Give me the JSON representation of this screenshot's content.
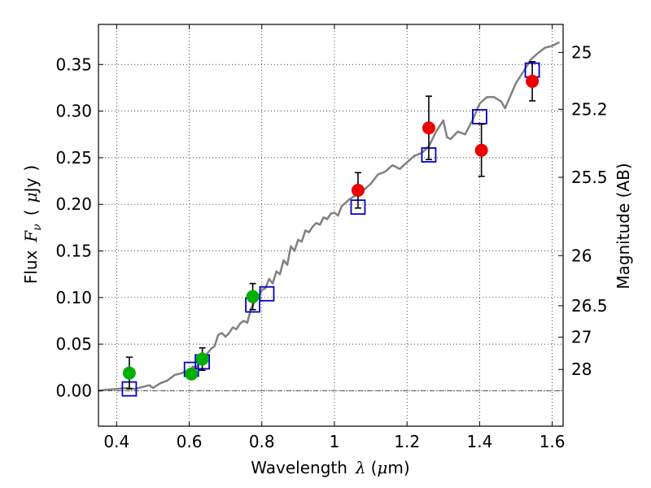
{
  "chart_data": {
    "type": "scatter",
    "xlabel": "Wavelength",
    "xlabel_symbol": "λ",
    "xlabel_unit_open": "(",
    "xlabel_unit_mu": "μ",
    "xlabel_unit_rest": "m)",
    "ylabel_prefix": "Flux",
    "ylabel_symbol": "F",
    "ylabel_subscript": "ν",
    "ylabel_unit_open": "(",
    "ylabel_unit_mu": "μ",
    "ylabel_unit_rest": "Jy",
    "ylabel_unit_close": ")",
    "y2label": "Magnitude (AB)",
    "xlim": [
      0.35,
      1.63
    ],
    "ylim": [
      -0.038,
      0.393
    ],
    "grid": true,
    "xticks": [
      {
        "value": 0.4,
        "label": "0.4"
      },
      {
        "value": 0.6,
        "label": "0.6"
      },
      {
        "value": 0.8,
        "label": "0.8"
      },
      {
        "value": 1.0,
        "label": "1"
      },
      {
        "value": 1.2,
        "label": "1.2"
      },
      {
        "value": 1.4,
        "label": "1.4"
      },
      {
        "value": 1.6,
        "label": "1.6"
      }
    ],
    "yticks": [
      {
        "value": 0.0,
        "label": "0.00"
      },
      {
        "value": 0.05,
        "label": "0.05"
      },
      {
        "value": 0.1,
        "label": "0.10"
      },
      {
        "value": 0.15,
        "label": "0.15"
      },
      {
        "value": 0.2,
        "label": "0.20"
      },
      {
        "value": 0.25,
        "label": "0.25"
      },
      {
        "value": 0.3,
        "label": "0.30"
      },
      {
        "value": 0.35,
        "label": "0.35"
      }
    ],
    "y2ticks": [
      {
        "flux": 0.363,
        "label": "25"
      },
      {
        "flux": 0.302,
        "label": "25.2"
      },
      {
        "flux": 0.229,
        "label": "25.5"
      },
      {
        "flux": 0.145,
        "label": "26"
      },
      {
        "flux": 0.0912,
        "label": "26.5"
      },
      {
        "flux": 0.0575,
        "label": "27"
      },
      {
        "flux": 0.0229,
        "label": "28"
      }
    ],
    "model_sed": {
      "color": "#808080",
      "x": [
        0.35,
        0.37,
        0.4,
        0.43,
        0.45,
        0.47,
        0.49,
        0.5,
        0.52,
        0.54,
        0.56,
        0.58,
        0.59,
        0.6,
        0.61,
        0.62,
        0.63,
        0.64,
        0.65,
        0.66,
        0.67,
        0.68,
        0.69,
        0.7,
        0.71,
        0.72,
        0.73,
        0.74,
        0.75,
        0.76,
        0.77,
        0.78,
        0.79,
        0.8,
        0.81,
        0.82,
        0.83,
        0.84,
        0.85,
        0.86,
        0.87,
        0.88,
        0.89,
        0.9,
        0.91,
        0.92,
        0.93,
        0.94,
        0.95,
        0.96,
        0.97,
        0.98,
        0.99,
        1.0,
        1.01,
        1.02,
        1.04,
        1.06,
        1.08,
        1.1,
        1.12,
        1.14,
        1.16,
        1.18,
        1.2,
        1.22,
        1.24,
        1.26,
        1.28,
        1.3,
        1.31,
        1.32,
        1.34,
        1.36,
        1.38,
        1.4,
        1.42,
        1.44,
        1.46,
        1.47,
        1.48,
        1.5,
        1.52,
        1.54,
        1.56,
        1.58,
        1.6,
        1.62
      ],
      "y": [
        0.0,
        0.001,
        0.002,
        0.003,
        0.002,
        0.004,
        0.006,
        0.003,
        0.008,
        0.011,
        0.017,
        0.019,
        0.021,
        0.02,
        0.026,
        0.024,
        0.036,
        0.033,
        0.04,
        0.045,
        0.048,
        0.06,
        0.062,
        0.058,
        0.062,
        0.068,
        0.066,
        0.072,
        0.075,
        0.073,
        0.088,
        0.095,
        0.1,
        0.108,
        0.11,
        0.12,
        0.115,
        0.128,
        0.125,
        0.14,
        0.135,
        0.155,
        0.15,
        0.162,
        0.16,
        0.172,
        0.17,
        0.176,
        0.18,
        0.178,
        0.186,
        0.184,
        0.19,
        0.191,
        0.188,
        0.198,
        0.205,
        0.21,
        0.215,
        0.222,
        0.232,
        0.235,
        0.242,
        0.238,
        0.245,
        0.252,
        0.255,
        0.262,
        0.278,
        0.29,
        0.272,
        0.27,
        0.278,
        0.275,
        0.29,
        0.308,
        0.315,
        0.315,
        0.31,
        0.303,
        0.312,
        0.33,
        0.342,
        0.355,
        0.362,
        0.368,
        0.37,
        0.374
      ]
    },
    "model_photometry": {
      "marker": "open-square",
      "color": "#0000cc",
      "x": [
        0.435,
        0.606,
        0.636,
        0.775,
        0.814,
        1.065,
        1.26,
        1.4,
        1.545
      ],
      "y": [
        0.002,
        0.023,
        0.031,
        0.092,
        0.104,
        0.197,
        0.253,
        0.294,
        0.344
      ]
    },
    "observed_green": {
      "marker": "filled-circle",
      "color": "#00b000",
      "x": [
        0.435,
        0.606,
        0.636,
        0.775
      ],
      "y": [
        0.019,
        0.018,
        0.034,
        0.101
      ],
      "yerr": [
        0.017,
        0.0,
        0.012,
        0.014
      ]
    },
    "observed_red": {
      "marker": "filled-circle",
      "color": "#ee0000",
      "x": [
        1.065,
        1.26,
        1.405,
        1.545
      ],
      "y": [
        0.215,
        0.282,
        0.258,
        0.332
      ],
      "yerr": [
        0.019,
        0.034,
        0.028,
        0.021
      ]
    },
    "baseline": {
      "y": 0.0,
      "style": "dash-dot",
      "color": "#000000"
    }
  }
}
